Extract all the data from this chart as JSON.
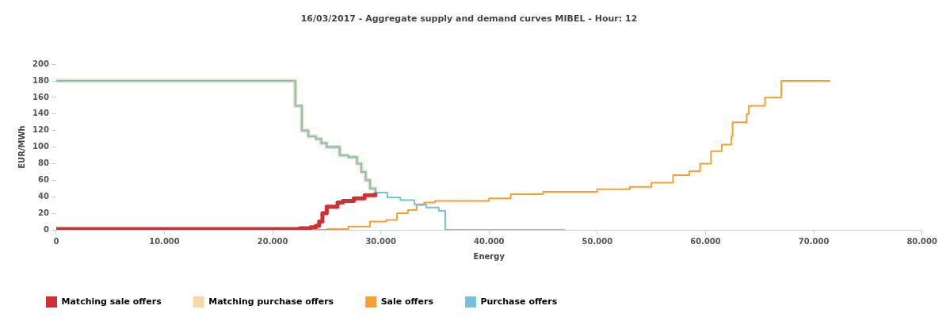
{
  "chart_data": {
    "type": "step",
    "title": "16/03/2017 - Aggregate supply and demand curves MIBEL - Hour: 12",
    "xlabel": "Energy",
    "ylabel": "EUR/MWh",
    "xlim": [
      0,
      80000
    ],
    "xticks": [
      0,
      {
        "value": 10000,
        "label": "10.000"
      },
      {
        "value": 20000,
        "label": "20.000"
      },
      {
        "value": 30000,
        "label": "30.000"
      },
      {
        "value": 40000,
        "label": "40.000"
      },
      {
        "value": 50000,
        "label": "50.000"
      },
      {
        "value": 60000,
        "label": "60.000"
      },
      {
        "value": 70000,
        "label": "70.000"
      },
      {
        "value": 80000,
        "label": "80.000"
      }
    ],
    "ylim": [
      0,
      200
    ],
    "yticks": [
      0,
      20,
      40,
      60,
      80,
      100,
      120,
      140,
      160,
      180,
      200
    ],
    "grid": false,
    "legend": "bottom left",
    "marker": "none",
    "line_style": "solid",
    "series": [
      {
        "name": "Matching sale offers",
        "color": "#d03030",
        "x": [
          0,
          21000,
          22500,
          23500,
          24000,
          24300,
          24600,
          25000,
          26000,
          26500,
          27500,
          28500,
          29500
        ],
        "values": [
          1,
          1,
          2,
          3,
          5,
          10,
          20,
          28,
          33,
          35,
          38,
          42,
          45
        ]
      },
      {
        "name": "Matching purchase offers",
        "color": "#f5d9a8",
        "x": [
          0,
          22100,
          22700,
          23300,
          24000,
          24500,
          25000,
          26200,
          27000,
          27800,
          28200,
          28600,
          29000,
          29500
        ],
        "values": [
          180,
          150,
          120,
          113,
          110,
          105,
          100,
          90,
          88,
          80,
          70,
          60,
          50,
          45
        ]
      },
      {
        "name": "Sale offers",
        "color": "#f7a030",
        "x": [
          0,
          25000,
          27000,
          29000,
          30500,
          31500,
          32500,
          33300,
          34000,
          35000,
          37000,
          40000,
          42000,
          45000,
          50000,
          53000,
          55000,
          57000,
          58500,
          59500,
          60500,
          61500,
          62400,
          62500,
          63800,
          64000,
          65200,
          65500,
          67000,
          71500
        ],
        "values": [
          0,
          1,
          4,
          10,
          12,
          20,
          24,
          30,
          33,
          35,
          35,
          38,
          43,
          46,
          49,
          52,
          57,
          66,
          71,
          80,
          95,
          103,
          113,
          130,
          140,
          150,
          150,
          160,
          180,
          180
        ]
      },
      {
        "name": "Purchase offers",
        "color": "#78c0dc",
        "x": [
          0,
          22100,
          22700,
          23300,
          24000,
          24500,
          25000,
          26200,
          27000,
          27800,
          28200,
          28600,
          29000,
          29500,
          30600,
          31800,
          33100,
          34200,
          35350,
          35950,
          47000
        ],
        "values": [
          180,
          150,
          120,
          113,
          110,
          105,
          100,
          90,
          88,
          80,
          70,
          60,
          50,
          45,
          39,
          36,
          31,
          27,
          23,
          0,
          0
        ]
      }
    ]
  }
}
